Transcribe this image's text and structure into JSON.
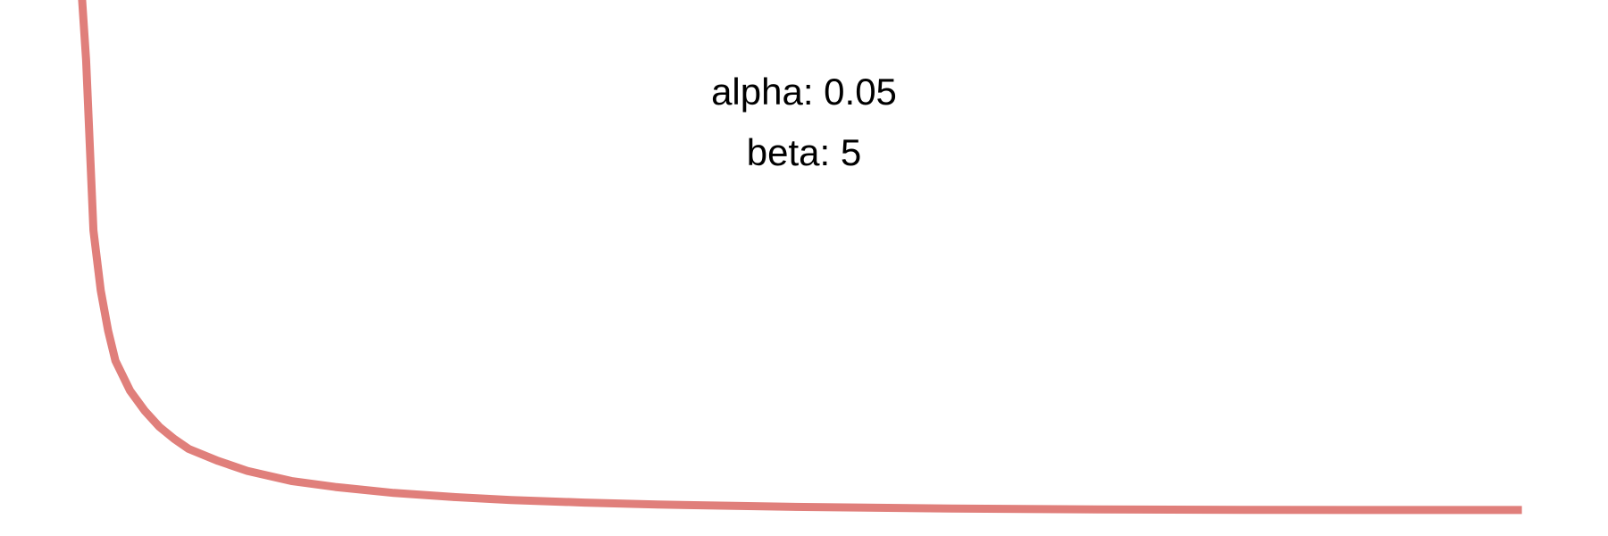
{
  "chart_data": {
    "type": "line",
    "title": "",
    "xlabel": "",
    "ylabel": "",
    "grid": false,
    "axes_visible": false,
    "annotations": {
      "alpha": "alpha: 0.05",
      "beta": "beta: 5"
    },
    "series": [
      {
        "color": "#e07f7b",
        "x": [
          0.005,
          0.01,
          0.015,
          0.02,
          0.025,
          0.03,
          0.04,
          0.05,
          0.06,
          0.07,
          0.08,
          0.1,
          0.12,
          0.15,
          0.18,
          0.22,
          0.26,
          0.3,
          0.35,
          0.4,
          0.5,
          0.6,
          0.7,
          0.8,
          0.9,
          0.99
        ],
        "values": [
          2.8,
          2.25,
          1.4,
          1.1,
          0.9,
          0.75,
          0.6,
          0.5,
          0.42,
          0.36,
          0.31,
          0.25,
          0.2,
          0.15,
          0.12,
          0.09,
          0.07,
          0.055,
          0.042,
          0.032,
          0.02,
          0.012,
          0.008,
          0.006,
          0.005,
          0.005
        ]
      }
    ],
    "xlim": [
      0,
      1
    ],
    "ylim": [
      0,
      2.55
    ]
  }
}
